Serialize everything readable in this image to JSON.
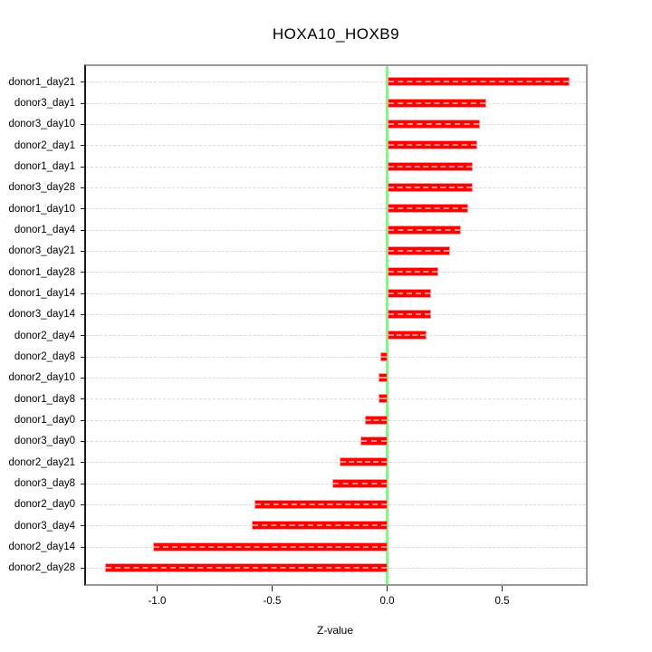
{
  "title": "HOXA10_HOXB9",
  "chart_data": {
    "type": "bar",
    "orientation": "horizontal",
    "title": "HOXA10_HOXB9",
    "xlabel": "Z-value",
    "ylabel": "",
    "categories": [
      "donor1_day21",
      "donor3_day1",
      "donor3_day10",
      "donor2_day1",
      "donor1_day1",
      "donor3_day28",
      "donor1_day10",
      "donor1_day4",
      "donor3_day21",
      "donor1_day28",
      "donor1_day14",
      "donor3_day14",
      "donor2_day4",
      "donor2_day8",
      "donor2_day10",
      "donor1_day8",
      "donor1_day0",
      "donor3_day0",
      "donor2_day21",
      "donor3_day8",
      "donor2_day0",
      "donor3_day4",
      "donor2_day14",
      "donor2_day28"
    ],
    "values": [
      0.79,
      0.43,
      0.4,
      0.39,
      0.37,
      0.37,
      0.35,
      0.32,
      0.27,
      0.22,
      0.19,
      0.19,
      0.17,
      -0.03,
      -0.04,
      -0.04,
      -0.1,
      -0.12,
      -0.21,
      -0.24,
      -0.58,
      -0.59,
      -1.02,
      -1.23
    ],
    "x_ticks": [
      -1.0,
      -0.5,
      0.0,
      0.5
    ],
    "x_tick_labels": [
      "-1.0",
      "-0.5",
      "0.0",
      "0.5"
    ],
    "xlim": [
      -1.31,
      0.86
    ],
    "grid": "horizontal dashed line per category",
    "zero_line": true,
    "legend": "none",
    "colors": {
      "bar_fill": "#ff0000",
      "bar_border": "#ff9999",
      "zero_line": "#90ee90",
      "grid_line": "#d9d9d9",
      "box_border": "#999999",
      "axis_text": "#000000"
    }
  }
}
